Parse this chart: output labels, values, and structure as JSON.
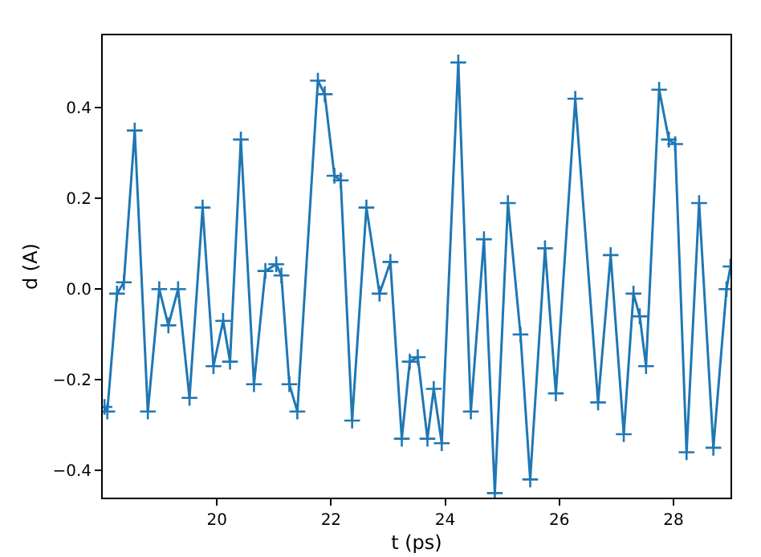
{
  "chart_data": {
    "type": "line",
    "xlabel": "t (ps)",
    "ylabel": "d (A)",
    "marker": "cross",
    "line_style": "solid",
    "grid": false,
    "xlim": [
      18,
      29
    ],
    "ylim": [
      -0.46,
      0.56
    ],
    "xticks": [
      20,
      22,
      24,
      26,
      28
    ],
    "yticks": [
      {
        "value": -0.4,
        "label": "−0.4"
      },
      {
        "value": -0.2,
        "label": "−0.2"
      },
      {
        "value": 0,
        "label": "0.0"
      },
      0.2,
      0.4
    ],
    "series": [
      {
        "color": "#1f77b4",
        "x": [
          18.03,
          18.08,
          18.25,
          18.37,
          18.56,
          18.79,
          18.99,
          19.15,
          19.32,
          19.52,
          19.75,
          19.94,
          20.11,
          20.23,
          20.42,
          20.65,
          20.85,
          21.04,
          21.13,
          21.27,
          21.41,
          21.77,
          21.89,
          22.06,
          22.17,
          22.37,
          22.62,
          22.85,
          23.04,
          23.24,
          23.38,
          23.52,
          23.69,
          23.8,
          23.94,
          24.23,
          24.45,
          24.68,
          24.87,
          25.1,
          25.32,
          25.49,
          25.75,
          25.94,
          26.28,
          26.68,
          26.9,
          27.13,
          27.3,
          27.41,
          27.52,
          27.75,
          27.92,
          28.03,
          28.23,
          28.45,
          28.7,
          28.93,
          29.0
        ],
        "values": [
          -0.26,
          -0.27,
          -0.01,
          0.015,
          0.35,
          -0.27,
          0.0,
          -0.08,
          0.0,
          -0.24,
          0.18,
          -0.17,
          -0.07,
          -0.16,
          0.33,
          -0.21,
          0.04,
          0.055,
          0.03,
          -0.21,
          -0.27,
          0.46,
          0.43,
          0.25,
          0.24,
          -0.29,
          0.18,
          -0.01,
          0.06,
          -0.33,
          -0.16,
          -0.15,
          -0.33,
          -0.22,
          -0.34,
          0.5,
          -0.27,
          0.11,
          -0.45,
          0.19,
          -0.1,
          -0.42,
          0.09,
          -0.23,
          0.42,
          -0.25,
          0.075,
          -0.32,
          -0.01,
          -0.06,
          -0.17,
          0.44,
          0.33,
          0.32,
          -0.36,
          0.19,
          -0.35,
          0.0,
          0.05
        ]
      }
    ]
  }
}
